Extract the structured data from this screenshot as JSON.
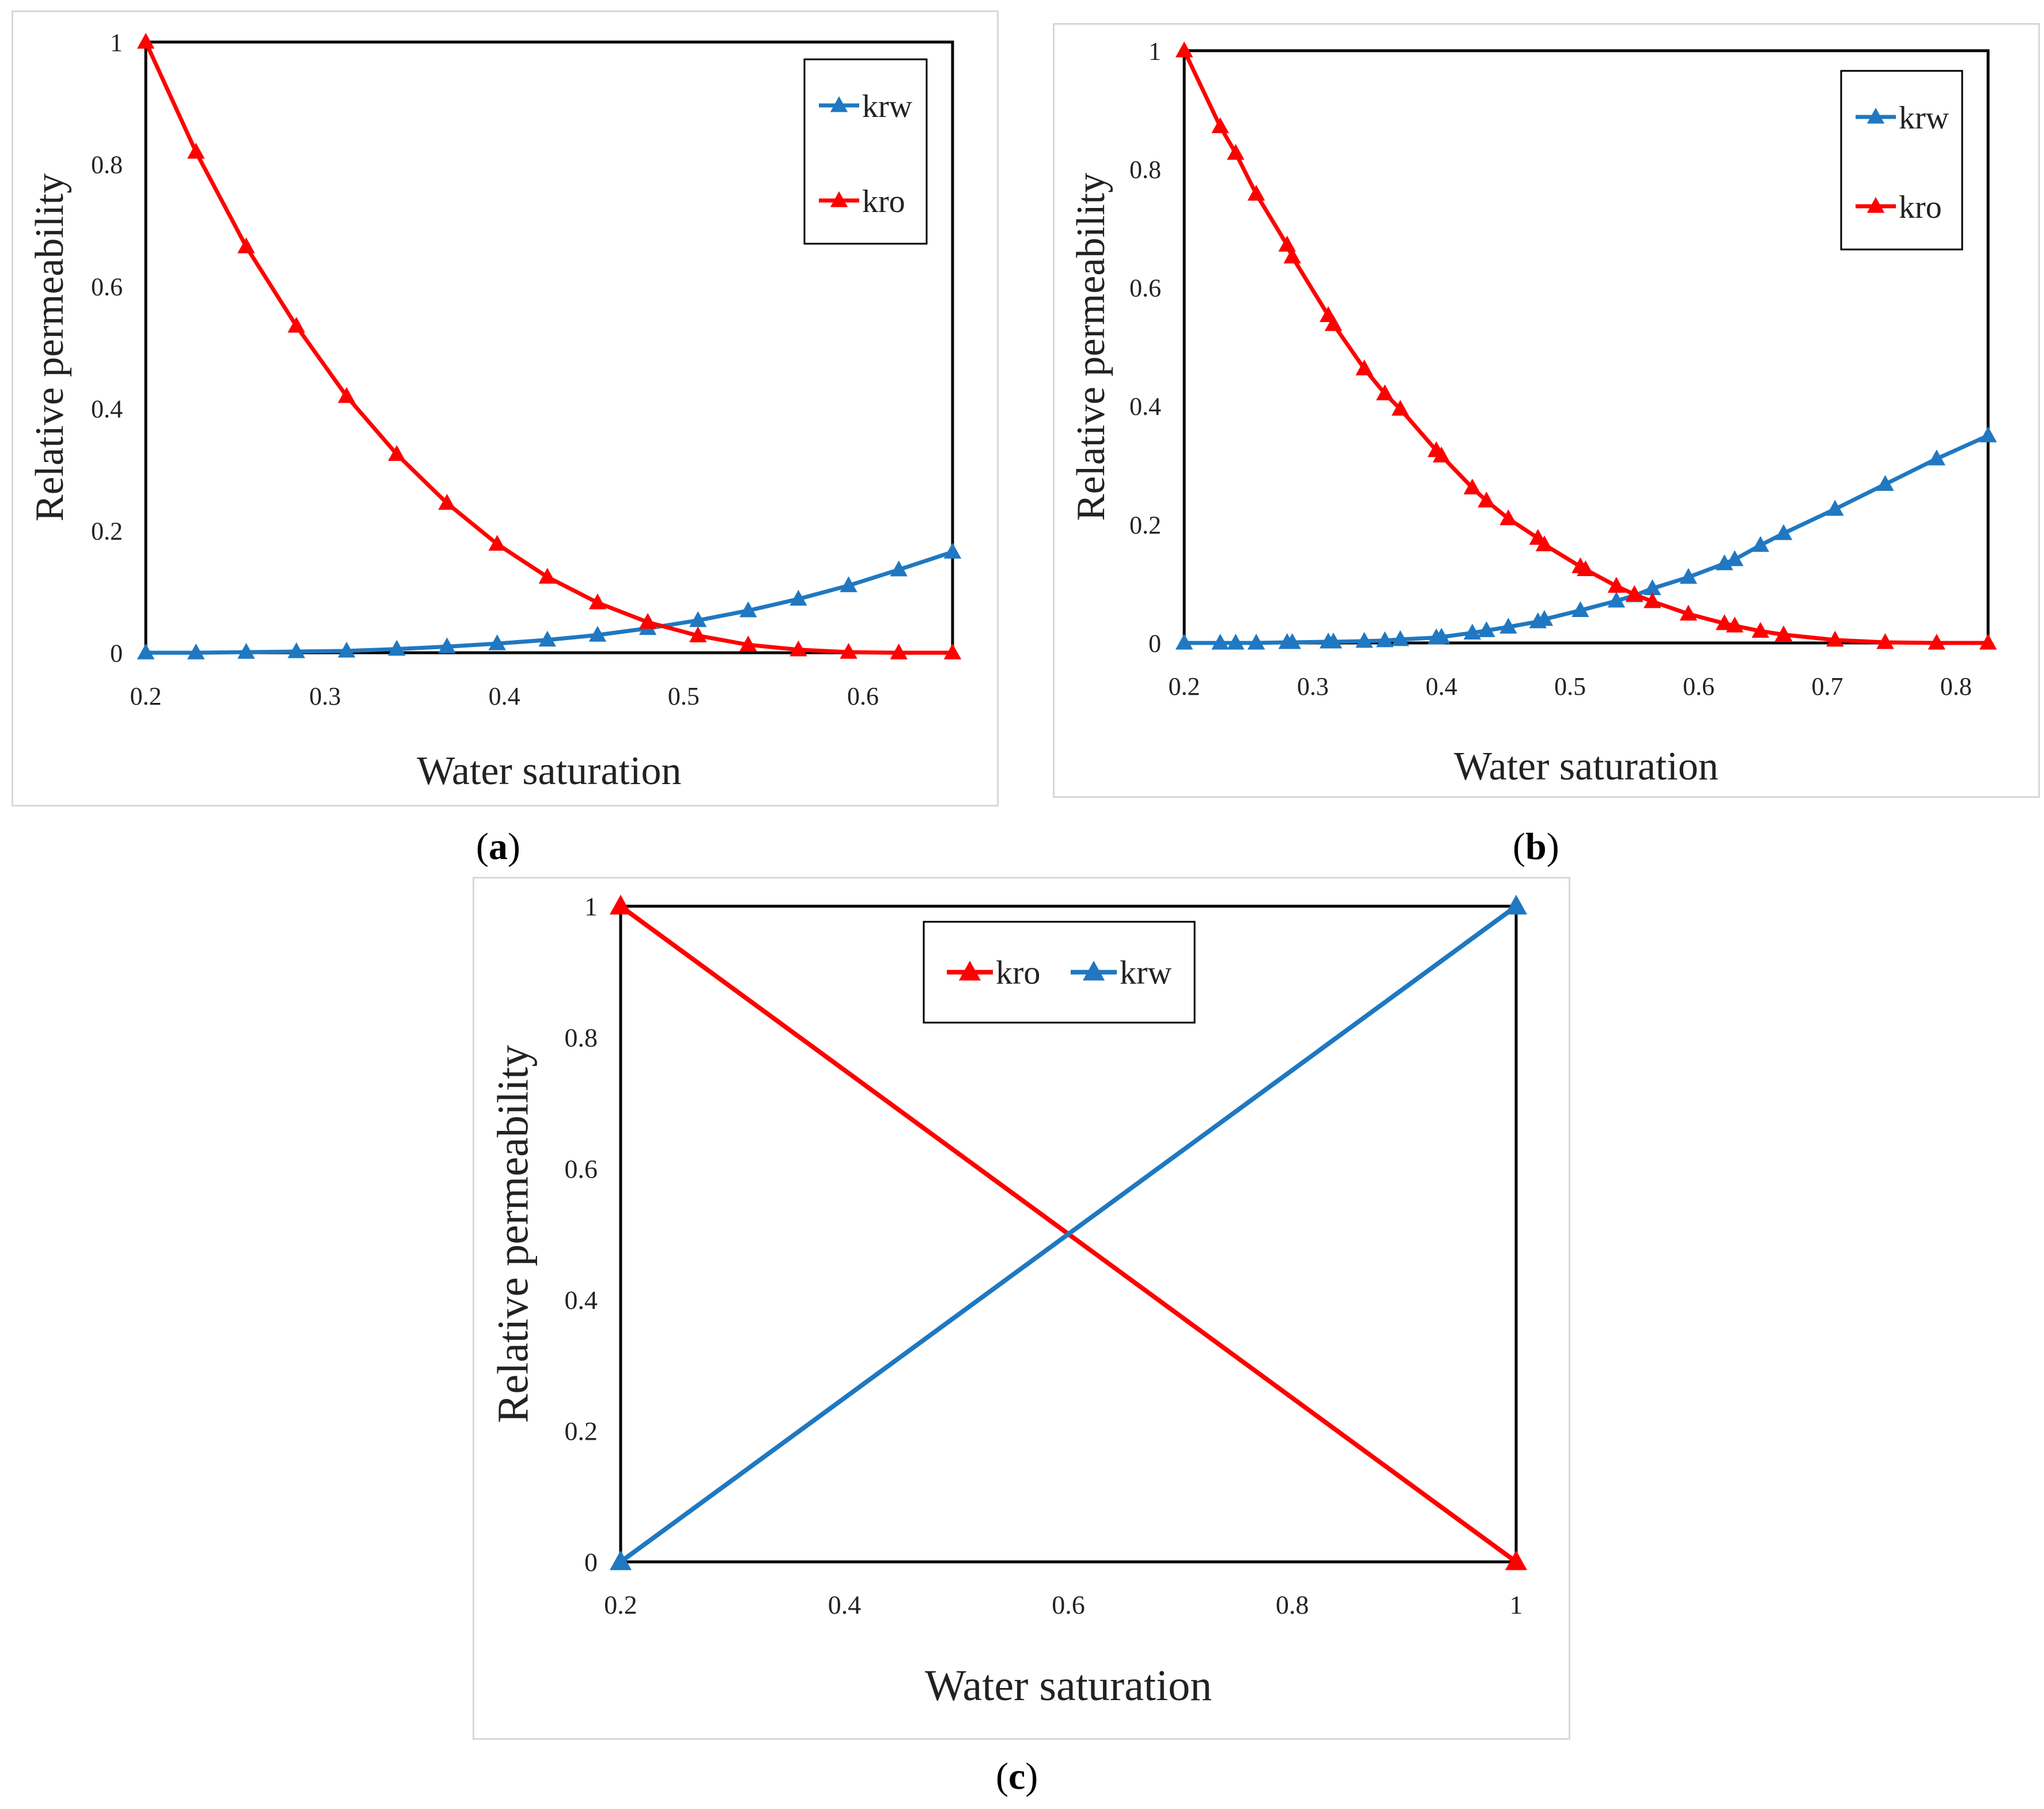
{
  "chart_data": [
    {
      "type": "line",
      "caption_letter": "a",
      "xlabel": "Water saturation",
      "ylabel": "Relative permeability",
      "xlim": [
        0.2,
        0.65
      ],
      "ylim": [
        0,
        1
      ],
      "xticks": [
        0.2,
        0.3,
        0.4,
        0.5,
        0.6
      ],
      "xtick_labels": [
        "0.2",
        "0.3",
        "0.4",
        "0.5",
        "0.6"
      ],
      "yticks": [
        0,
        0.2,
        0.4,
        0.6,
        0.8,
        1
      ],
      "ytick_labels": [
        "0",
        "0.2",
        "0.4",
        "0.6",
        "0.8",
        "1"
      ],
      "legend": "top-right",
      "series": [
        {
          "name": "krw",
          "color": "#1f78c1",
          "x": [
            0.2,
            0.228,
            0.256,
            0.284,
            0.312,
            0.34,
            0.368,
            0.396,
            0.424,
            0.452,
            0.48,
            0.508,
            0.536,
            0.564,
            0.592,
            0.62,
            0.65
          ],
          "y": [
            0,
            0,
            0.001,
            0.002,
            0.003,
            0.006,
            0.01,
            0.015,
            0.021,
            0.029,
            0.04,
            0.053,
            0.069,
            0.088,
            0.11,
            0.136,
            0.165
          ]
        },
        {
          "name": "kro",
          "color": "#ff0000",
          "x": [
            0.2,
            0.228,
            0.256,
            0.284,
            0.312,
            0.34,
            0.368,
            0.396,
            0.424,
            0.452,
            0.48,
            0.508,
            0.536,
            0.564,
            0.592,
            0.62,
            0.65
          ],
          "y": [
            1,
            0.82,
            0.665,
            0.535,
            0.42,
            0.325,
            0.245,
            0.178,
            0.124,
            0.082,
            0.05,
            0.028,
            0.013,
            0.005,
            0.001,
            0,
            0
          ]
        }
      ]
    },
    {
      "type": "line",
      "caption_letter": "b",
      "xlabel": "Water saturation",
      "ylabel": "Relative permeability",
      "xlim": [
        0.2,
        0.825
      ],
      "ylim": [
        0,
        1
      ],
      "xticks": [
        0.2,
        0.3,
        0.4,
        0.5,
        0.6,
        0.7,
        0.8
      ],
      "xtick_labels": [
        "0.2",
        "0.3",
        "0.4",
        "0.5",
        "0.6",
        "0.7",
        "0.8"
      ],
      "yticks": [
        0,
        0.2,
        0.4,
        0.6,
        0.8,
        1
      ],
      "ytick_labels": [
        "0",
        "0.2",
        "0.4",
        "0.6",
        "0.8",
        "1"
      ],
      "legend": "top-right",
      "series": [
        {
          "name": "krw",
          "color": "#1f78c1",
          "x": [
            0.2,
            0.228,
            0.24,
            0.256,
            0.28,
            0.284,
            0.312,
            0.316,
            0.34,
            0.356,
            0.368,
            0.396,
            0.4,
            0.424,
            0.435,
            0.452,
            0.475,
            0.48,
            0.508,
            0.536,
            0.55,
            0.564,
            0.592,
            0.62,
            0.628,
            0.648,
            0.666,
            0.706,
            0.745,
            0.785,
            0.825
          ],
          "y": [
            0,
            0,
            0,
            0,
            0.001,
            0.001,
            0.002,
            0.002,
            0.003,
            0.004,
            0.006,
            0.009,
            0.01,
            0.017,
            0.021,
            0.027,
            0.036,
            0.04,
            0.055,
            0.071,
            0.08,
            0.092,
            0.111,
            0.134,
            0.141,
            0.165,
            0.185,
            0.226,
            0.268,
            0.311,
            0.35
          ]
        },
        {
          "name": "kro",
          "color": "#ff0000",
          "x": [
            0.2,
            0.228,
            0.24,
            0.256,
            0.28,
            0.284,
            0.312,
            0.316,
            0.34,
            0.356,
            0.368,
            0.396,
            0.4,
            0.424,
            0.435,
            0.452,
            0.475,
            0.48,
            0.508,
            0.512,
            0.536,
            0.55,
            0.564,
            0.592,
            0.62,
            0.628,
            0.648,
            0.666,
            0.706,
            0.745,
            0.785,
            0.825
          ],
          "y": [
            1,
            0.872,
            0.827,
            0.758,
            0.672,
            0.652,
            0.553,
            0.538,
            0.463,
            0.421,
            0.395,
            0.325,
            0.316,
            0.262,
            0.24,
            0.21,
            0.177,
            0.166,
            0.129,
            0.124,
            0.096,
            0.082,
            0.07,
            0.049,
            0.033,
            0.029,
            0.02,
            0.014,
            0.005,
            0.001,
            0,
            0
          ]
        }
      ]
    },
    {
      "type": "line",
      "caption_letter": "c",
      "xlabel": "Water saturation",
      "ylabel": "Relative permeability",
      "xlim": [
        0.2,
        1
      ],
      "ylim": [
        0,
        1
      ],
      "xticks": [
        0.2,
        0.4,
        0.6,
        0.8,
        1
      ],
      "xtick_labels": [
        "0.2",
        "0.4",
        "0.6",
        "0.8",
        "1"
      ],
      "yticks": [
        0,
        0.2,
        0.4,
        0.6,
        0.8,
        1
      ],
      "ytick_labels": [
        "0",
        "0.2",
        "0.4",
        "0.6",
        "0.8",
        "1"
      ],
      "legend": "top-left",
      "series": [
        {
          "name": "kro",
          "color": "#ff0000",
          "x": [
            0.2,
            1
          ],
          "y": [
            1,
            0
          ]
        },
        {
          "name": "krw",
          "color": "#1f78c1",
          "x": [
            0.2,
            1
          ],
          "y": [
            0,
            1
          ]
        }
      ]
    }
  ]
}
